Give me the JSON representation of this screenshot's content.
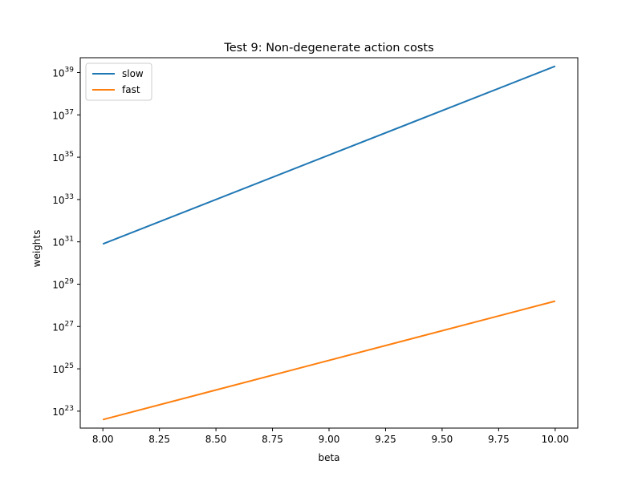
{
  "chart_data": {
    "type": "line",
    "title": "Test 9: Non-degenerate action costs",
    "xlabel": "beta",
    "ylabel": "weights",
    "yscale": "log",
    "xlim": [
      7.9,
      10.1
    ],
    "ylim_exp": [
      22.2,
      39.7
    ],
    "xticks": [
      "8.00",
      "8.25",
      "8.50",
      "8.75",
      "9.00",
      "9.25",
      "9.50",
      "9.75",
      "10.00"
    ],
    "yticks": [
      {
        "base": "10",
        "exp": "23"
      },
      {
        "base": "10",
        "exp": "25"
      },
      {
        "base": "10",
        "exp": "27"
      },
      {
        "base": "10",
        "exp": "29"
      },
      {
        "base": "10",
        "exp": "31"
      },
      {
        "base": "10",
        "exp": "33"
      },
      {
        "base": "10",
        "exp": "35"
      },
      {
        "base": "10",
        "exp": "37"
      },
      {
        "base": "10",
        "exp": "39"
      }
    ],
    "grid": false,
    "legend_position": "top-left",
    "series": [
      {
        "name": "slow",
        "color": "#1f77b4",
        "x": [
          8.0,
          10.0
        ],
        "y_exp": [
          30.9,
          39.3
        ]
      },
      {
        "name": "fast",
        "color": "#ff7f0e",
        "x": [
          8.0,
          10.0
        ],
        "y_exp": [
          22.6,
          28.2
        ]
      }
    ]
  }
}
